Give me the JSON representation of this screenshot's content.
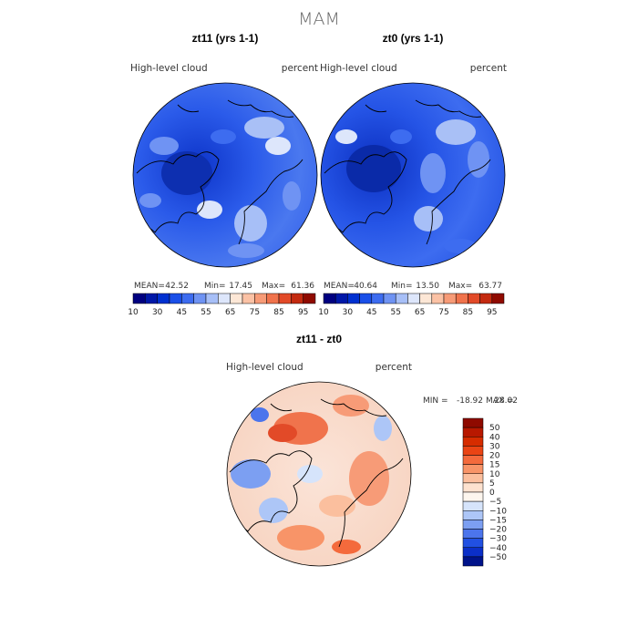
{
  "figure_title": "MAM",
  "chart_data": [
    {
      "type": "heatmap",
      "projection": "north-polar-stereographic",
      "title": "zt11 (yrs 1-1)",
      "field_label": "High-level cloud",
      "units": "percent",
      "stats": {
        "mean_label": "MEAN=",
        "mean": "42.52",
        "min_label": "Min=",
        "min": "17.45",
        "max_label": "Max=",
        "max": "61.36"
      },
      "colorbar": {
        "orientation": "horizontal",
        "colors": [
          "#000080",
          "#0018a8",
          "#0030d0",
          "#1a4fe8",
          "#3d6cf0",
          "#6f93f3",
          "#a7bff7",
          "#dde6fb",
          "#fde7d6",
          "#fbc2a5",
          "#f79b77",
          "#f0734c",
          "#e24a28",
          "#c42a10",
          "#8f0a00"
        ],
        "tick_labels": [
          "10",
          "30",
          "45",
          "55",
          "65",
          "75",
          "85",
          "95"
        ]
      }
    },
    {
      "type": "heatmap",
      "projection": "north-polar-stereographic",
      "title": "zt0 (yrs 1-1)",
      "field_label": "High-level cloud",
      "units": "percent",
      "stats": {
        "mean_label": "MEAN=",
        "mean": "40.64",
        "min_label": "Min=",
        "min": "13.50",
        "max_label": "Max=",
        "max": "63.77"
      },
      "colorbar": {
        "orientation": "horizontal",
        "colors": [
          "#000080",
          "#0018a8",
          "#0030d0",
          "#1a4fe8",
          "#3d6cf0",
          "#6f93f3",
          "#a7bff7",
          "#dde6fb",
          "#fde7d6",
          "#fbc2a5",
          "#f79b77",
          "#f0734c",
          "#e24a28",
          "#c42a10",
          "#8f0a00"
        ],
        "tick_labels": [
          "10",
          "30",
          "45",
          "55",
          "65",
          "75",
          "85",
          "95"
        ]
      }
    },
    {
      "type": "heatmap",
      "projection": "north-polar-stereographic",
      "title": "zt11 - zt0",
      "field_label": "High-level cloud",
      "units": "percent",
      "stats": {
        "min_label": "MIN =",
        "min": "-18.92",
        "max_label": "MAX =",
        "max": "28.02"
      },
      "colorbar": {
        "orientation": "vertical",
        "colors": [
          "#8f0a00",
          "#b81800",
          "#d62c00",
          "#ea4414",
          "#f46a3c",
          "#f89468",
          "#fbbf9e",
          "#fde2cf",
          "#fdf6ee",
          "#d6e4fb",
          "#adc6f7",
          "#7c9ff2",
          "#4c75ec",
          "#2150e2",
          "#0b2fc8",
          "#00138a"
        ],
        "tick_labels": [
          "50",
          "40",
          "30",
          "20",
          "15",
          "10",
          "5",
          "0",
          "−5",
          "−10",
          "−15",
          "−20",
          "−30",
          "−40",
          "−50"
        ]
      }
    }
  ]
}
